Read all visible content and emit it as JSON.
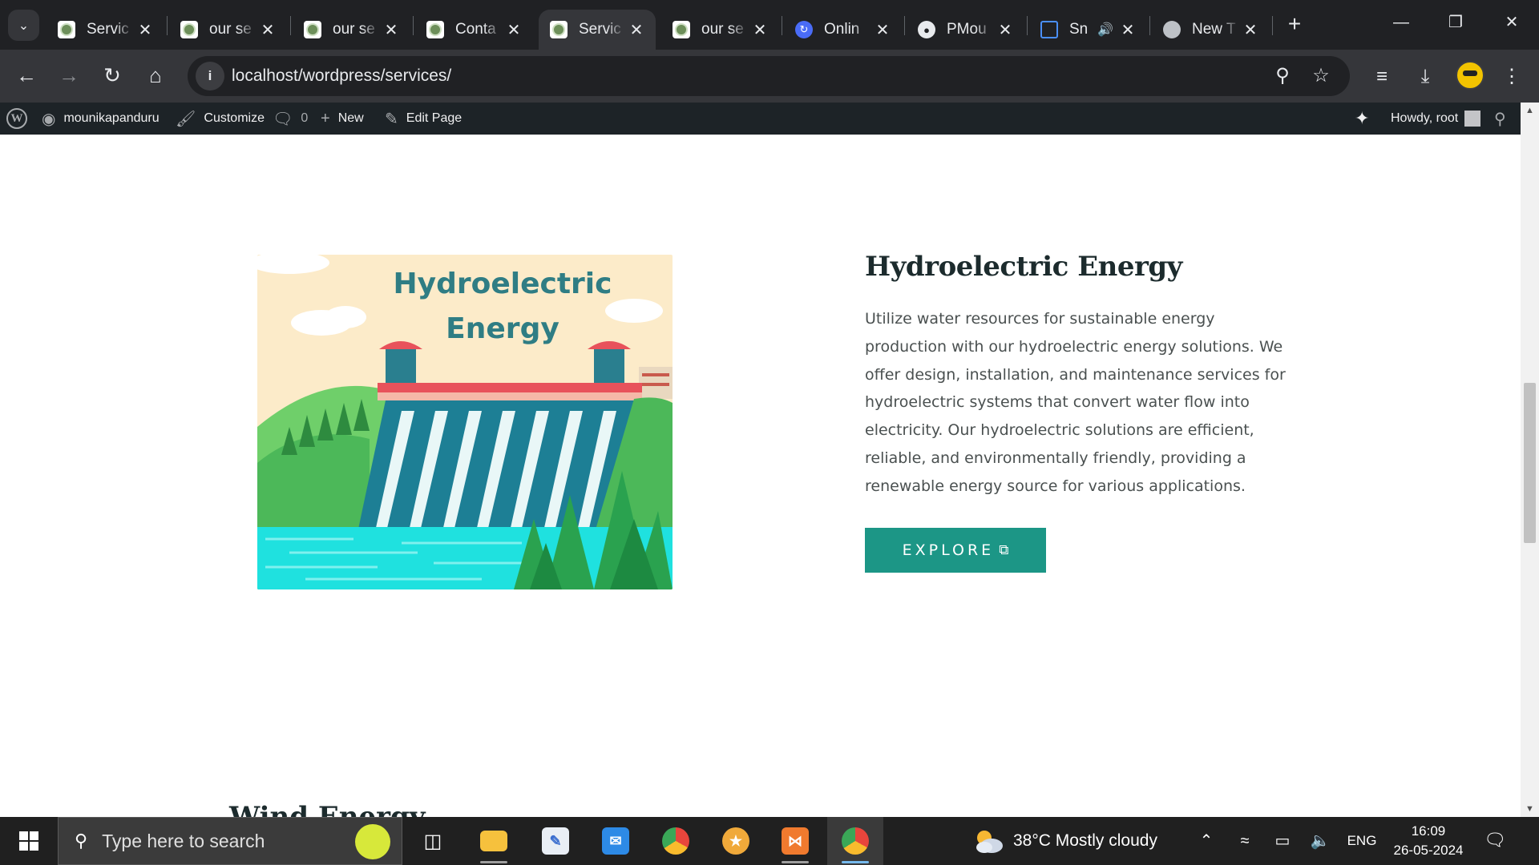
{
  "browser": {
    "tabs": [
      {
        "title": "Servic",
        "favicon": "wordpress-favicon",
        "active": false
      },
      {
        "title": "our se",
        "favicon": "wordpress-favicon",
        "active": false
      },
      {
        "title": "our se",
        "favicon": "wordpress-favicon",
        "active": false
      },
      {
        "title": "Conta",
        "favicon": "wordpress-favicon",
        "active": false
      },
      {
        "title": "Servic",
        "favicon": "wordpress-favicon",
        "active": true
      },
      {
        "title": "our se",
        "favicon": "wordpress-favicon",
        "active": false
      },
      {
        "title": "Onlin",
        "favicon": "online-favicon",
        "active": false
      },
      {
        "title": "PMou",
        "favicon": "github-favicon",
        "active": false
      },
      {
        "title": "Sn",
        "favicon": "snip-favicon",
        "active": false,
        "audio": true
      },
      {
        "title": "New T",
        "favicon": "chrome-favicon",
        "active": false
      }
    ],
    "url": "localhost/wordpress/services/",
    "colors": {
      "frame": "#202124",
      "toolbar": "#35363a",
      "omnibox": "#202124"
    }
  },
  "adminbar": {
    "site_name": "mounikapanduru",
    "customize": "Customize",
    "comments_count": "0",
    "new_label": "New",
    "edit_label": "Edit Page",
    "howdy": "Howdy, root"
  },
  "content": {
    "image": {
      "title_line1": "Hydroelectric",
      "title_line2": "Energy"
    },
    "service_title": "Hydroelectric Energy",
    "service_desc": "Utilize water resources for sustainable energy production with our hydroelectric energy solutions. We offer design, installation, and maintenance services for hydroelectric systems that convert water flow into electricity. Our hydroelectric solutions are efficient, reliable, and environmentally friendly, providing a renewable energy source for various applications.",
    "explore_label": "EXPLORE",
    "next_title": "Wind Energy",
    "colors": {
      "accent": "#1c9686",
      "heading": "#1c2b2d",
      "body_text": "#4a5050"
    }
  },
  "taskbar": {
    "search_placeholder": "Type here to search",
    "weather": "38°C  Mostly cloudy",
    "language": "ENG",
    "time": "16:09",
    "date": "26-05-2024"
  }
}
